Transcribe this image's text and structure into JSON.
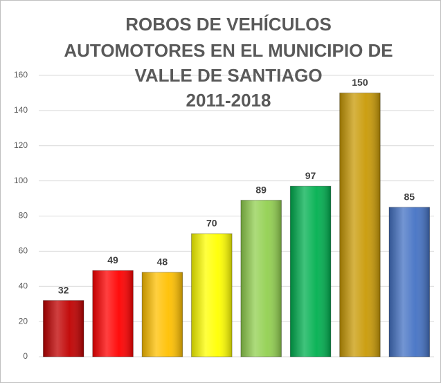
{
  "chart_data": {
    "type": "bar",
    "title": [
      "ROBOS DE VEHÍCULOS",
      "AUTOMOTORES EN EL MUNICIPIO DE",
      "VALLE DE SANTIAGO",
      "2011-2018"
    ],
    "values": [
      32,
      49,
      48,
      70,
      89,
      97,
      150,
      85
    ],
    "colors": [
      "#c00000",
      "#ff0000",
      "#ffc000",
      "#ffff00",
      "#92d050",
      "#00b050",
      "#c99a06",
      "#4472c4"
    ],
    "ylim": [
      0,
      160
    ],
    "yticks": [
      0,
      20,
      40,
      60,
      80,
      100,
      120,
      140,
      160
    ],
    "grid": true
  }
}
